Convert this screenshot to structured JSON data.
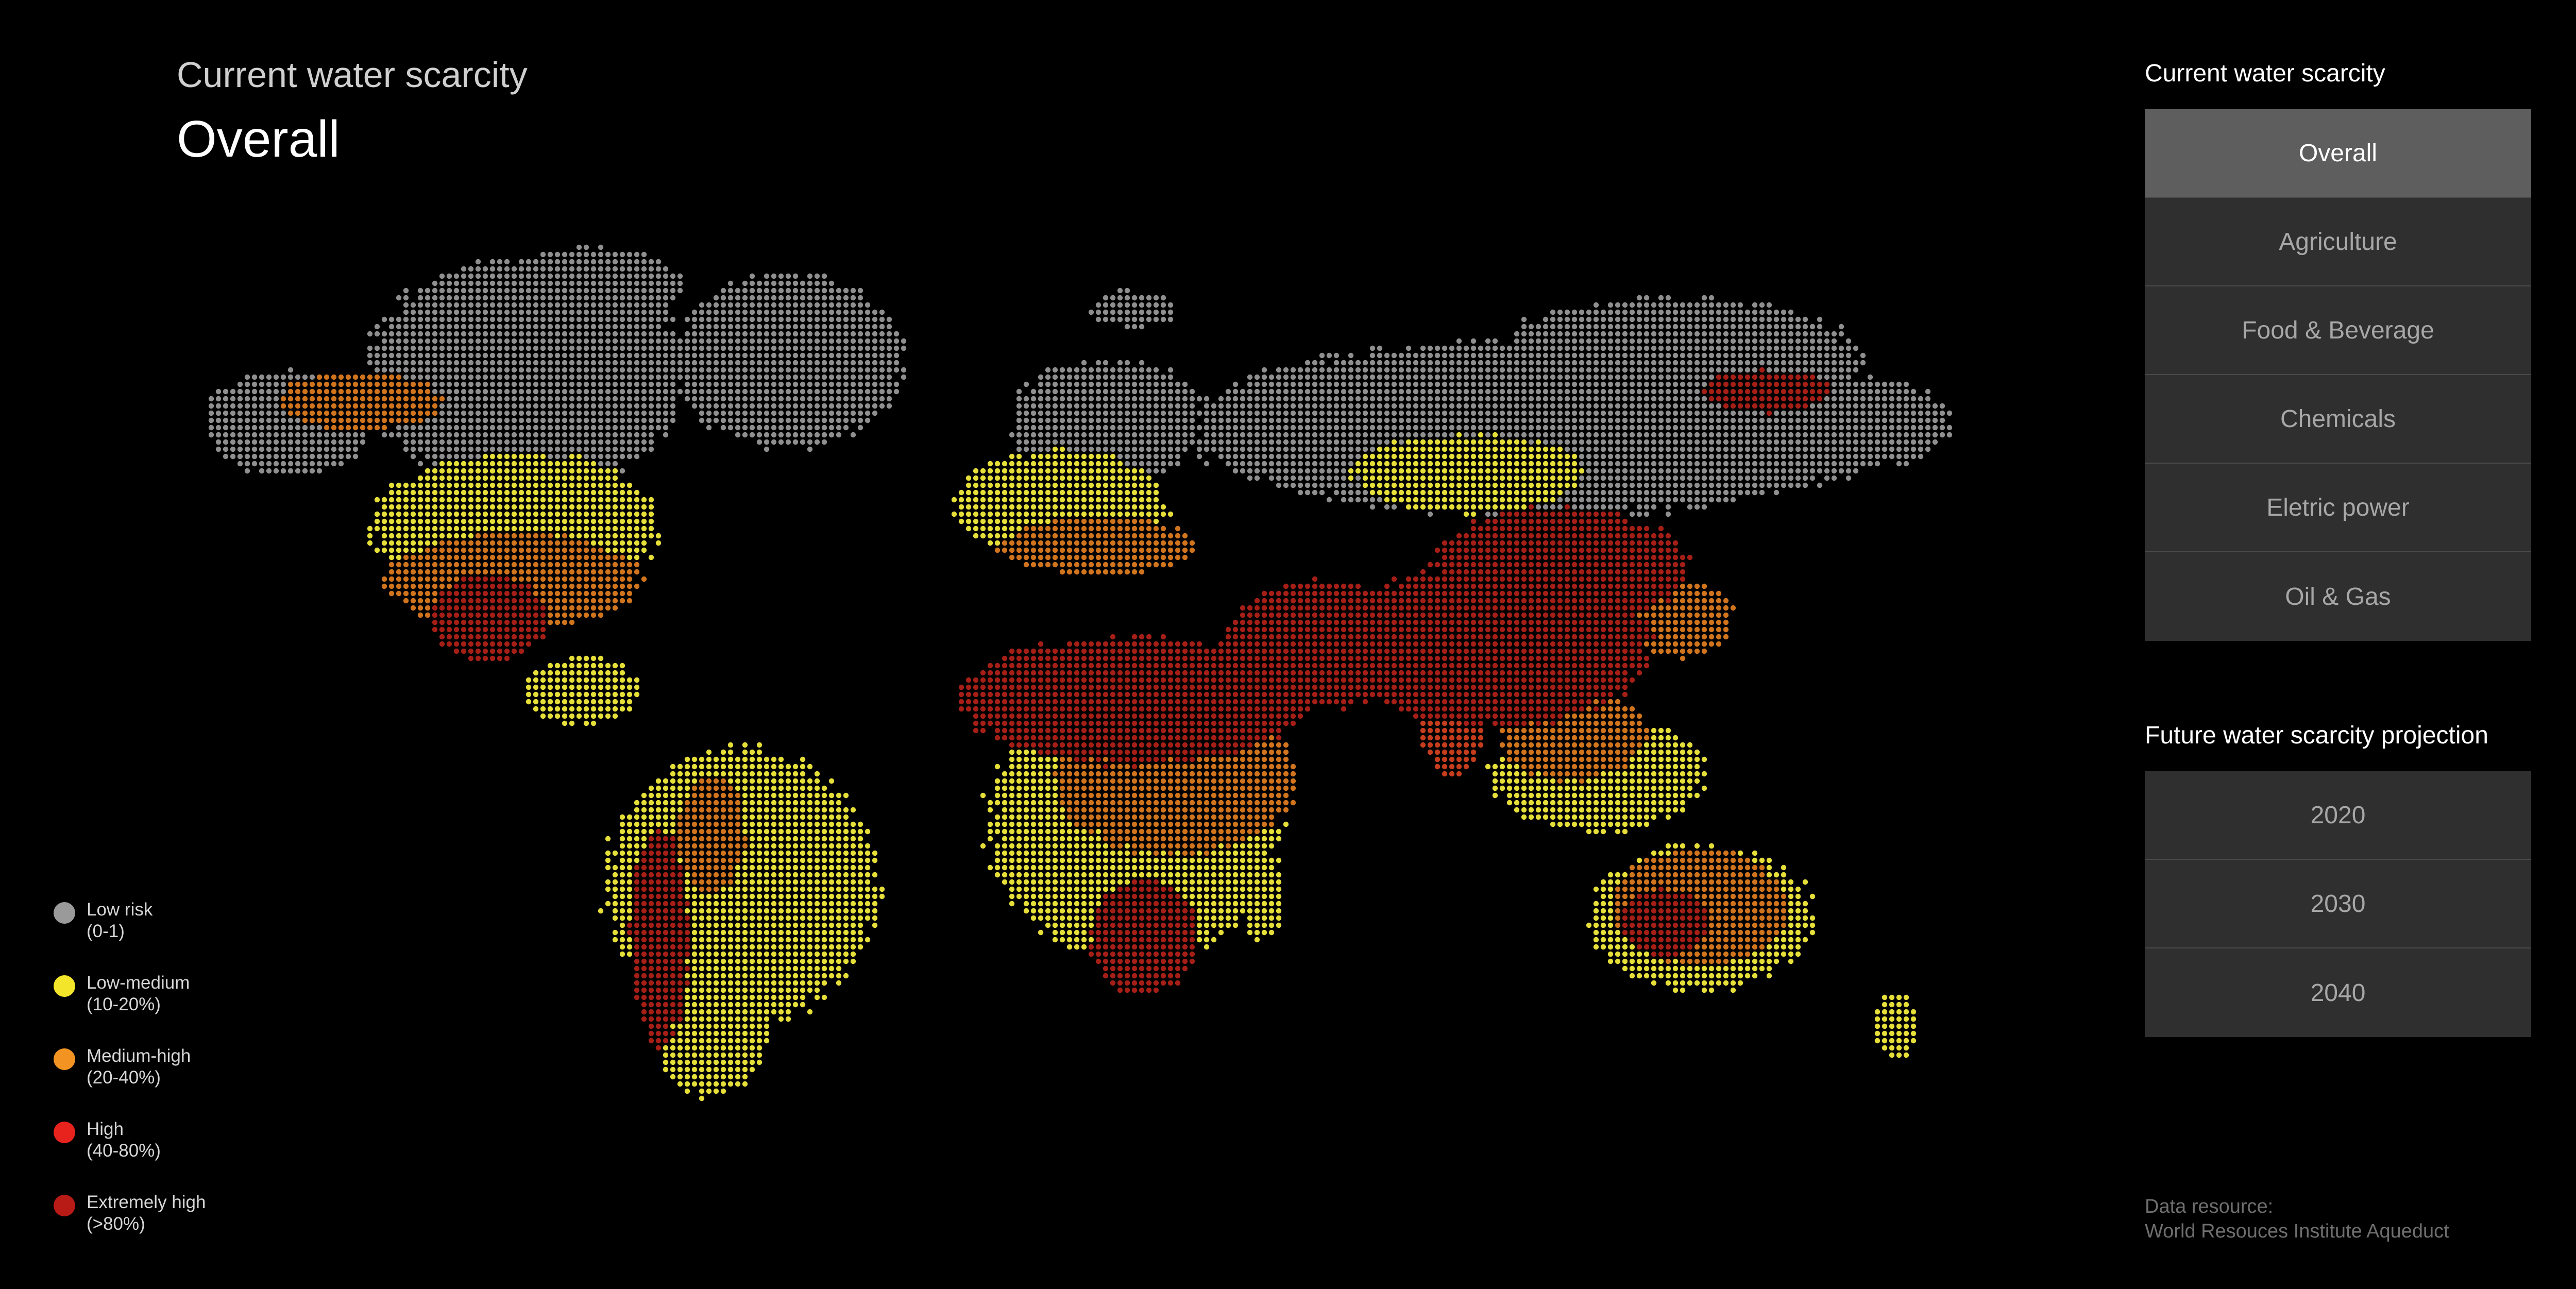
{
  "header": {
    "subtitle": "Current water scarcity",
    "title": "Overall"
  },
  "legend": [
    {
      "label": "Low risk",
      "range": "(0-1)",
      "color": "#9a9a9a"
    },
    {
      "label": "Low-medium",
      "range": "(10-20%)",
      "color": "#f2e52a"
    },
    {
      "label": "Medium-high",
      "range": "(20-40%)",
      "color": "#f39422"
    },
    {
      "label": "High",
      "range": "(40-80%)",
      "color": "#e8231e"
    },
    {
      "label": "Extremely high",
      "range": "(>80%)",
      "color": "#b81a16"
    }
  ],
  "current_panel": {
    "title": "Current water scarcity",
    "items": [
      "Overall",
      "Agriculture",
      "Food & Beverage",
      "Chemicals",
      "Eletric power",
      "Oil & Gas"
    ],
    "selected": "Overall"
  },
  "future_panel": {
    "title": "Future water scarcity projection",
    "items": [
      "2020",
      "2030",
      "2040"
    ]
  },
  "source": {
    "label": "Data resource:",
    "value": "World Resouces Institute Aqueduct"
  },
  "colors": {
    "background": "#000000",
    "button": "#2f2f2f",
    "button_active": "#5e5e5e",
    "map_low": "#8f8f8f",
    "map_low_medium": "#e6df3a",
    "map_medium_high": "#d0741e",
    "map_high": "#c63d1d",
    "map_extreme": "#a51f17"
  }
}
